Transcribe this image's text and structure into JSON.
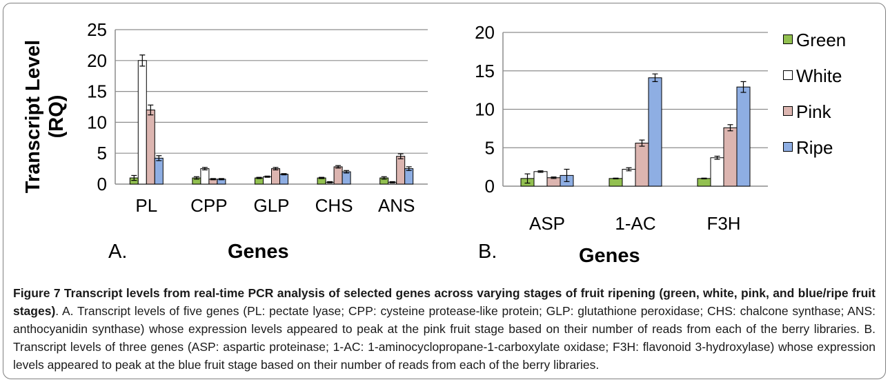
{
  "chart_data": [
    {
      "panel": "A.",
      "type": "bar",
      "ylabel": "Transcript Level (RQ)",
      "ylabel_lines": [
        "Transcript Level",
        "(RQ)"
      ],
      "xlabel": "Genes",
      "ylim": [
        0,
        25
      ],
      "yticks": [
        0,
        5,
        10,
        15,
        20,
        25
      ],
      "grid": true,
      "categories": [
        "PL",
        "CPP",
        "GLP",
        "CHS",
        "ANS"
      ],
      "series": [
        {
          "name": "Green",
          "values": [
            1.0,
            1.0,
            1.0,
            1.0,
            1.0
          ],
          "errors": [
            0.4,
            0.2,
            0.1,
            0.1,
            0.2
          ]
        },
        {
          "name": "White",
          "values": [
            20.0,
            2.5,
            1.2,
            0.3,
            0.3
          ],
          "errors": [
            0.9,
            0.2,
            0.1,
            0.1,
            0.1
          ]
        },
        {
          "name": "Pink",
          "values": [
            12.0,
            0.8,
            2.5,
            2.8,
            4.5
          ],
          "errors": [
            0.8,
            0.1,
            0.2,
            0.2,
            0.4
          ]
        },
        {
          "name": "Ripe",
          "values": [
            4.2,
            0.8,
            1.6,
            2.0,
            2.5
          ],
          "errors": [
            0.4,
            0.1,
            0.1,
            0.2,
            0.3
          ]
        }
      ]
    },
    {
      "panel": "B.",
      "type": "bar",
      "ylabel": "",
      "xlabel": "Genes",
      "ylim": [
        0,
        20
      ],
      "yticks": [
        0,
        5,
        10,
        15,
        20
      ],
      "grid": true,
      "legend": "right",
      "categories": [
        "ASP",
        "1-AC",
        "F3H"
      ],
      "series": [
        {
          "name": "Green",
          "values": [
            1.0,
            1.0,
            1.0
          ],
          "errors": [
            0.6,
            0.05,
            0.05
          ]
        },
        {
          "name": "White",
          "values": [
            1.9,
            2.2,
            3.7
          ],
          "errors": [
            0.1,
            0.2,
            0.2
          ]
        },
        {
          "name": "Pink",
          "values": [
            1.1,
            5.6,
            7.6
          ],
          "errors": [
            0.1,
            0.4,
            0.4
          ]
        },
        {
          "name": "Ripe",
          "values": [
            1.4,
            14.1,
            12.9
          ],
          "errors": [
            0.8,
            0.5,
            0.7
          ]
        }
      ]
    }
  ],
  "colors": {
    "Green": "#92c050",
    "White": "#ffffff",
    "Pink": "#dcb5b0",
    "Ripe": "#8eaee3",
    "grid": "#8c8c8c",
    "axis": "#8c8c8c",
    "frame": "#7f7f7f"
  },
  "caption": {
    "title": "Figure 7 Transcript levels from real-time PCR analysis of selected genes across varying stages of fruit ripening (green, white, pink, and blue/ripe fruit stages)",
    "body": ". A. Transcript levels of five genes (PL: pectate lyase; CPP: cysteine protease-like protein; GLP: glutathione peroxidase; CHS: chalcone synthase; ANS: anthocyanidin synthase) whose expression levels appeared to peak at the pink fruit stage based on their number of reads from each of the berry libraries. B. Transcript levels of three genes (ASP: aspartic proteinase; 1-AC: 1-aminocyclopropane-1-carboxylate oxidase; F3H: flavonoid 3-hydroxylase) whose expression levels appeared to peak at the blue fruit stage based on their number of reads from each of the berry libraries."
  }
}
